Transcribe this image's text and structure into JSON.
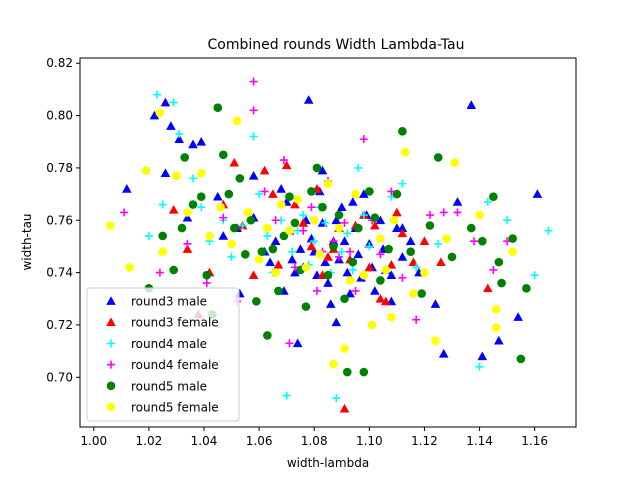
{
  "chart_data": {
    "type": "scatter",
    "title": "Combined rounds Width Lambda-Tau",
    "xlabel": "width-lambda",
    "ylabel": "width-tau",
    "xlim": [
      0.995,
      1.175
    ],
    "ylim": [
      0.681,
      0.822
    ],
    "xticks": [
      "1.00",
      "1.02",
      "1.04",
      "1.06",
      "1.08",
      "1.10",
      "1.12",
      "1.14",
      "1.16"
    ],
    "yticks": [
      "0.70",
      "0.72",
      "0.74",
      "0.76",
      "0.78",
      "0.80",
      "0.82"
    ],
    "legend_position": "lower-left",
    "grid": false,
    "series": [
      {
        "name": "round3 male",
        "marker": "triangle",
        "color": "#0000ff",
        "points": [
          [
            1.012,
            0.772
          ],
          [
            1.022,
            0.8
          ],
          [
            1.026,
            0.805
          ],
          [
            1.028,
            0.796
          ],
          [
            1.031,
            0.791
          ],
          [
            1.036,
            0.789
          ],
          [
            1.039,
            0.79
          ],
          [
            1.026,
            0.778
          ],
          [
            1.034,
            0.761
          ],
          [
            1.045,
            0.769
          ],
          [
            1.052,
            0.757
          ],
          [
            1.058,
            0.761
          ],
          [
            1.062,
            0.748
          ],
          [
            1.064,
            0.744
          ],
          [
            1.066,
            0.752
          ],
          [
            1.068,
            0.772
          ],
          [
            1.07,
            0.767
          ],
          [
            1.071,
            0.756
          ],
          [
            1.072,
            0.745
          ],
          [
            1.073,
            0.74
          ],
          [
            1.075,
            0.749
          ],
          [
            1.076,
            0.742
          ],
          [
            1.077,
            0.76
          ],
          [
            1.078,
            0.806
          ],
          [
            1.079,
            0.753
          ],
          [
            1.08,
            0.748
          ],
          [
            1.081,
            0.739
          ],
          [
            1.082,
            0.771
          ],
          [
            1.083,
            0.759
          ],
          [
            1.084,
            0.744
          ],
          [
            1.085,
            0.736
          ],
          [
            1.086,
            0.728
          ],
          [
            1.087,
            0.752
          ],
          [
            1.088,
            0.76
          ],
          [
            1.089,
            0.745
          ],
          [
            1.09,
            0.765
          ],
          [
            1.091,
            0.752
          ],
          [
            1.092,
            0.74
          ],
          [
            1.093,
            0.732
          ],
          [
            1.094,
            0.767
          ],
          [
            1.095,
            0.757
          ],
          [
            1.096,
            0.747
          ],
          [
            1.097,
            0.738
          ],
          [
            1.098,
            0.77
          ],
          [
            1.099,
            0.762
          ],
          [
            1.1,
            0.751
          ],
          [
            1.101,
            0.742
          ],
          [
            1.102,
            0.733
          ],
          [
            1.104,
            0.76
          ],
          [
            1.105,
            0.749
          ],
          [
            1.106,
            0.741
          ],
          [
            1.108,
            0.729
          ],
          [
            1.11,
            0.757
          ],
          [
            1.112,
            0.746
          ],
          [
            1.115,
            0.752
          ],
          [
            1.118,
            0.74
          ],
          [
            1.124,
            0.728
          ],
          [
            1.127,
            0.709
          ],
          [
            1.132,
            0.767
          ],
          [
            1.137,
            0.804
          ],
          [
            1.141,
            0.708
          ],
          [
            1.147,
            0.714
          ],
          [
            1.154,
            0.723
          ],
          [
            1.161,
            0.77
          ],
          [
            1.069,
            0.733
          ],
          [
            1.074,
            0.713
          ],
          [
            1.058,
            0.777
          ],
          [
            1.047,
            0.754
          ],
          [
            1.053,
            0.732
          ],
          [
            1.108,
            0.739
          ],
          [
            1.112,
            0.757
          ],
          [
            1.088,
            0.721
          ],
          [
            1.083,
            0.779
          ]
        ]
      },
      {
        "name": "round3 female",
        "marker": "triangle",
        "color": "#ff0000",
        "points": [
          [
            1.029,
            0.764
          ],
          [
            1.034,
            0.749
          ],
          [
            1.038,
            0.724
          ],
          [
            1.042,
            0.74
          ],
          [
            1.047,
            0.766
          ],
          [
            1.051,
            0.782
          ],
          [
            1.054,
            0.758
          ],
          [
            1.058,
            0.739
          ],
          [
            1.062,
            0.779
          ],
          [
            1.065,
            0.77
          ],
          [
            1.067,
            0.743
          ],
          [
            1.07,
            0.781
          ],
          [
            1.073,
            0.766
          ],
          [
            1.076,
            0.759
          ],
          [
            1.079,
            0.75
          ],
          [
            1.081,
            0.772
          ],
          [
            1.083,
            0.739
          ],
          [
            1.085,
            0.746
          ],
          [
            1.087,
            0.749
          ],
          [
            1.089,
            0.757
          ],
          [
            1.091,
            0.688
          ],
          [
            1.093,
            0.745
          ],
          [
            1.095,
            0.758
          ],
          [
            1.098,
            0.762
          ],
          [
            1.1,
            0.742
          ],
          [
            1.102,
            0.758
          ],
          [
            1.104,
            0.73
          ],
          [
            1.106,
            0.729
          ],
          [
            1.108,
            0.743
          ],
          [
            1.11,
            0.763
          ],
          [
            1.112,
            0.755
          ],
          [
            1.116,
            0.744
          ],
          [
            1.12,
            0.752
          ],
          [
            1.126,
            0.744
          ],
          [
            1.143,
            0.734
          ]
        ]
      },
      {
        "name": "round4 male",
        "marker": "plus",
        "color": "#00ffff",
        "points": [
          [
            1.02,
            0.754
          ],
          [
            1.023,
            0.808
          ],
          [
            1.025,
            0.766
          ],
          [
            1.029,
            0.805
          ],
          [
            1.031,
            0.793
          ],
          [
            1.036,
            0.776
          ],
          [
            1.039,
            0.765
          ],
          [
            1.042,
            0.752
          ],
          [
            1.047,
            0.76
          ],
          [
            1.05,
            0.746
          ],
          [
            1.054,
            0.758
          ],
          [
            1.058,
            0.792
          ],
          [
            1.06,
            0.77
          ],
          [
            1.063,
            0.754
          ],
          [
            1.065,
            0.74
          ],
          [
            1.068,
            0.76
          ],
          [
            1.07,
            0.693
          ],
          [
            1.072,
            0.748
          ],
          [
            1.074,
            0.756
          ],
          [
            1.076,
            0.762
          ],
          [
            1.078,
            0.743
          ],
          [
            1.08,
            0.752
          ],
          [
            1.082,
            0.765
          ],
          [
            1.084,
            0.759
          ],
          [
            1.086,
            0.74
          ],
          [
            1.088,
            0.692
          ],
          [
            1.09,
            0.748
          ],
          [
            1.092,
            0.755
          ],
          [
            1.094,
            0.741
          ],
          [
            1.096,
            0.78
          ],
          [
            1.098,
            0.762
          ],
          [
            1.1,
            0.75
          ],
          [
            1.104,
            0.737
          ],
          [
            1.108,
            0.769
          ],
          [
            1.112,
            0.774
          ],
          [
            1.117,
            0.742
          ],
          [
            1.125,
            0.751
          ],
          [
            1.14,
            0.704
          ],
          [
            1.143,
            0.767
          ],
          [
            1.15,
            0.76
          ],
          [
            1.16,
            0.739
          ],
          [
            1.165,
            0.756
          ]
        ]
      },
      {
        "name": "round4 female",
        "marker": "plus",
        "color": "#ff00ff",
        "points": [
          [
            1.011,
            0.763
          ],
          [
            1.024,
            0.74
          ],
          [
            1.034,
            0.751
          ],
          [
            1.041,
            0.736
          ],
          [
            1.047,
            0.761
          ],
          [
            1.052,
            0.729
          ],
          [
            1.058,
            0.813
          ],
          [
            1.058,
            0.802
          ],
          [
            1.062,
            0.771
          ],
          [
            1.066,
            0.76
          ],
          [
            1.069,
            0.783
          ],
          [
            1.071,
            0.713
          ],
          [
            1.073,
            0.742
          ],
          [
            1.076,
            0.756
          ],
          [
            1.079,
            0.765
          ],
          [
            1.081,
            0.733
          ],
          [
            1.083,
            0.748
          ],
          [
            1.085,
            0.775
          ],
          [
            1.087,
            0.752
          ],
          [
            1.089,
            0.746
          ],
          [
            1.091,
            0.759
          ],
          [
            1.093,
            0.748
          ],
          [
            1.095,
            0.733
          ],
          [
            1.098,
            0.791
          ],
          [
            1.101,
            0.76
          ],
          [
            1.104,
            0.747
          ],
          [
            1.108,
            0.771
          ],
          [
            1.112,
            0.738
          ],
          [
            1.117,
            0.722
          ],
          [
            1.122,
            0.762
          ],
          [
            1.127,
            0.763
          ],
          [
            1.132,
            0.763
          ],
          [
            1.138,
            0.752
          ],
          [
            1.145,
            0.741
          ],
          [
            1.15,
            0.752
          ]
        ]
      },
      {
        "name": "round5 male",
        "marker": "circle",
        "color": "#008000",
        "points": [
          [
            1.02,
            0.734
          ],
          [
            1.025,
            0.754
          ],
          [
            1.029,
            0.741
          ],
          [
            1.032,
            0.757
          ],
          [
            1.033,
            0.784
          ],
          [
            1.036,
            0.766
          ],
          [
            1.039,
            0.769
          ],
          [
            1.041,
            0.739
          ],
          [
            1.043,
            0.724
          ],
          [
            1.045,
            0.803
          ],
          [
            1.047,
            0.785
          ],
          [
            1.049,
            0.77
          ],
          [
            1.051,
            0.757
          ],
          [
            1.053,
            0.776
          ],
          [
            1.055,
            0.747
          ],
          [
            1.057,
            0.76
          ],
          [
            1.059,
            0.729
          ],
          [
            1.061,
            0.748
          ],
          [
            1.063,
            0.716
          ],
          [
            1.065,
            0.749
          ],
          [
            1.067,
            0.733
          ],
          [
            1.069,
            0.754
          ],
          [
            1.071,
            0.769
          ],
          [
            1.073,
            0.759
          ],
          [
            1.075,
            0.741
          ],
          [
            1.077,
            0.727
          ],
          [
            1.079,
            0.771
          ],
          [
            1.081,
            0.78
          ],
          [
            1.083,
            0.765
          ],
          [
            1.085,
            0.739
          ],
          [
            1.087,
            0.75
          ],
          [
            1.089,
            0.762
          ],
          [
            1.091,
            0.73
          ],
          [
            1.092,
            0.702
          ],
          [
            1.094,
            0.744
          ],
          [
            1.096,
            0.757
          ],
          [
            1.098,
            0.702
          ],
          [
            1.1,
            0.771
          ],
          [
            1.102,
            0.761
          ],
          [
            1.104,
            0.737
          ],
          [
            1.107,
            0.749
          ],
          [
            1.11,
            0.77
          ],
          [
            1.112,
            0.794
          ],
          [
            1.115,
            0.748
          ],
          [
            1.119,
            0.732
          ],
          [
            1.122,
            0.758
          ],
          [
            1.125,
            0.784
          ],
          [
            1.13,
            0.746
          ],
          [
            1.137,
            0.757
          ],
          [
            1.141,
            0.752
          ],
          [
            1.145,
            0.769
          ],
          [
            1.148,
            0.736
          ],
          [
            1.152,
            0.753
          ],
          [
            1.155,
            0.707
          ],
          [
            1.157,
            0.734
          ],
          [
            1.147,
            0.744
          ]
        ]
      },
      {
        "name": "round5 female",
        "marker": "circle",
        "color": "#ffff00",
        "points": [
          [
            1.006,
            0.758
          ],
          [
            1.013,
            0.742
          ],
          [
            1.019,
            0.779
          ],
          [
            1.024,
            0.801
          ],
          [
            1.025,
            0.748
          ],
          [
            1.03,
            0.777
          ],
          [
            1.034,
            0.763
          ],
          [
            1.039,
            0.778
          ],
          [
            1.042,
            0.754
          ],
          [
            1.046,
            0.765
          ],
          [
            1.05,
            0.751
          ],
          [
            1.052,
            0.798
          ],
          [
            1.056,
            0.763
          ],
          [
            1.06,
            0.745
          ],
          [
            1.063,
            0.757
          ],
          [
            1.066,
            0.74
          ],
          [
            1.068,
            0.766
          ],
          [
            1.071,
            0.756
          ],
          [
            1.074,
            0.768
          ],
          [
            1.077,
            0.742
          ],
          [
            1.08,
            0.76
          ],
          [
            1.082,
            0.747
          ],
          [
            1.085,
            0.774
          ],
          [
            1.087,
            0.705
          ],
          [
            1.089,
            0.757
          ],
          [
            1.091,
            0.711
          ],
          [
            1.093,
            0.737
          ],
          [
            1.095,
            0.77
          ],
          [
            1.098,
            0.739
          ],
          [
            1.101,
            0.72
          ],
          [
            1.104,
            0.753
          ],
          [
            1.106,
            0.741
          ],
          [
            1.109,
            0.76
          ],
          [
            1.113,
            0.786
          ],
          [
            1.116,
            0.732
          ],
          [
            1.12,
            0.74
          ],
          [
            1.124,
            0.714
          ],
          [
            1.128,
            0.753
          ],
          [
            1.131,
            0.782
          ],
          [
            1.14,
            0.762
          ],
          [
            1.146,
            0.726
          ],
          [
            1.146,
            0.719
          ],
          [
            1.152,
            0.748
          ],
          [
            1.108,
            0.723
          ]
        ]
      }
    ]
  }
}
